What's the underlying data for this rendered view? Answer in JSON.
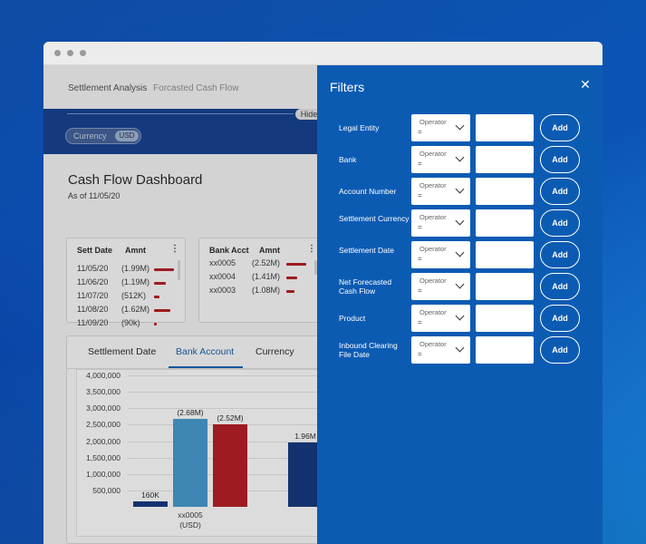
{
  "breadcrumb": {
    "title": "Settlement Analysis",
    "sub": "Forcasted Cash Flow"
  },
  "banner": {
    "hide_label": "Hide",
    "toggle_left": "Currency",
    "toggle_right": "USD"
  },
  "dashboard": {
    "title": "Cash Flow Dashboard",
    "as_of": "As of 11/05/20"
  },
  "card1": {
    "col1": "Sett Date",
    "col2": "Amnt",
    "rows": [
      {
        "date": "11/05/20",
        "amt": "(1.99M)",
        "bar": 1.0
      },
      {
        "date": "11/06/20",
        "amt": "(1.19M)",
        "bar": 0.6
      },
      {
        "date": "11/07/20",
        "amt": "(512K)",
        "bar": 0.26
      },
      {
        "date": "11/08/20",
        "amt": "(1.62M)",
        "bar": 0.81
      },
      {
        "date": "11/09/20",
        "amt": "(90k)",
        "bar": 0.1
      }
    ]
  },
  "card2": {
    "col1": "Bank Acct",
    "col2": "Amnt",
    "rows": [
      {
        "acct": "xx0005",
        "amt": "(2.52M)",
        "bar": 1.0
      },
      {
        "acct": "xx0004",
        "amt": "(1.41M)",
        "bar": 0.56
      },
      {
        "acct": "xx0003",
        "amt": "(1.08M)",
        "bar": 0.43
      }
    ]
  },
  "tabs": [
    {
      "label": "Settlement Date"
    },
    {
      "label": "Bank Account"
    },
    {
      "label": "Currency"
    }
  ],
  "chart_data": {
    "type": "bar",
    "ylim": [
      0,
      4000000
    ],
    "yticks": [
      "4,000,000",
      "3,500,000",
      "3,000,000",
      "2,500,000",
      "2,000,000",
      "1,500,000",
      "1,000,000",
      "500,000"
    ],
    "ytick_values": [
      4000000,
      3500000,
      3000000,
      2500000,
      2000000,
      1500000,
      1000000,
      500000
    ],
    "bars": [
      {
        "value": 160000,
        "label": "160K",
        "color": "#0b2f7a"
      },
      {
        "value": 2680000,
        "label": "(2.68M)",
        "color": "#3f97cf"
      },
      {
        "value": 2520000,
        "label": "(2.52M)",
        "color": "#b3141b"
      },
      {
        "value": 1960000,
        "label": "1.96M",
        "color": "#0b2f7a"
      }
    ],
    "category": {
      "line1": "xx0005",
      "line2": "(USD)"
    }
  },
  "filters": {
    "title": "Filters",
    "operator_label": "Operator",
    "operator_value": "=",
    "add_label": "Add",
    "rows": [
      {
        "label": "Legal Entity"
      },
      {
        "label": "Bank"
      },
      {
        "label": "Account Number"
      },
      {
        "label": "Settlement Currency"
      },
      {
        "label": "Settlement Date"
      },
      {
        "label": "Net Forecasted Cash Flow"
      },
      {
        "label": "Product"
      },
      {
        "label": "Inbound Clearing File Date"
      }
    ]
  }
}
